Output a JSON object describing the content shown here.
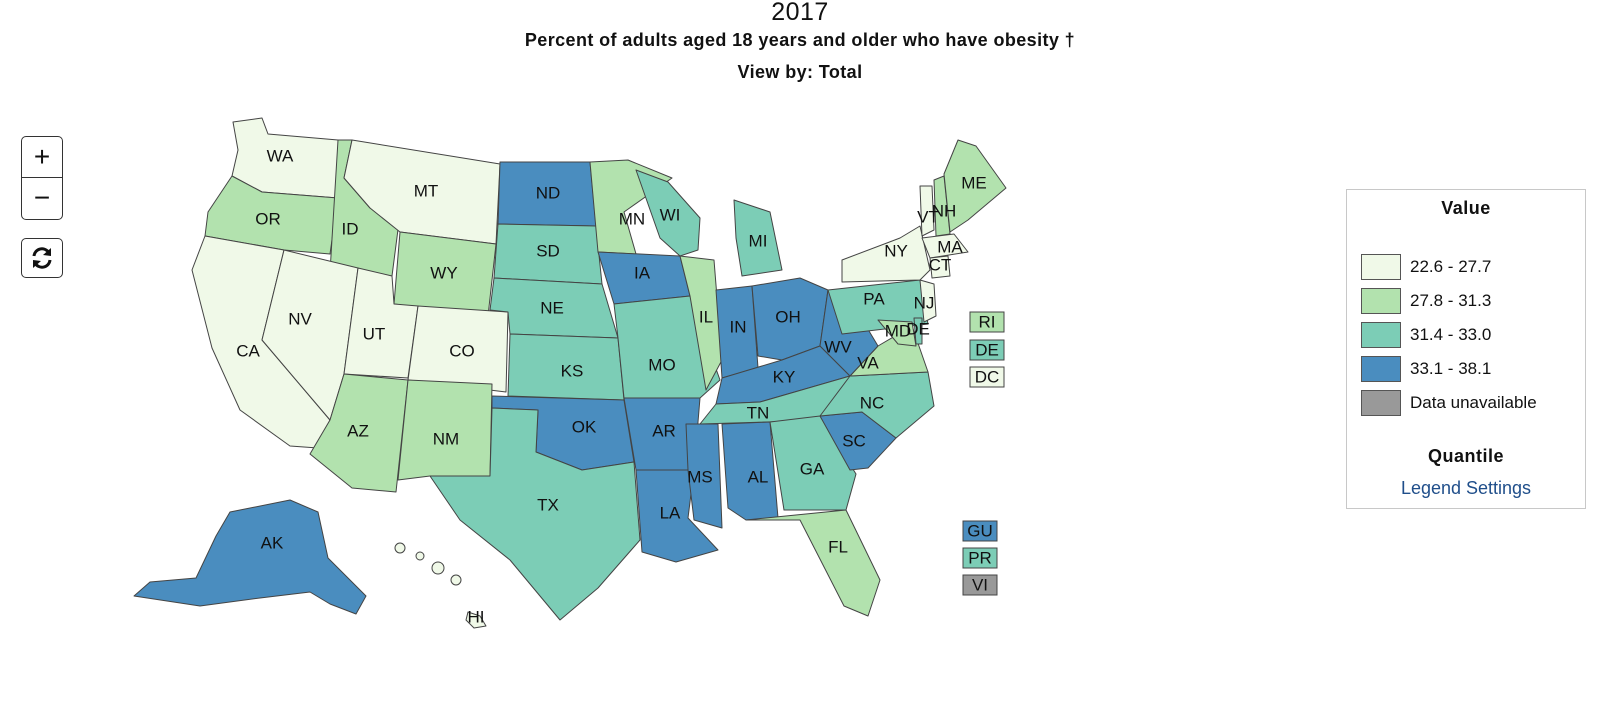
{
  "header": {
    "year": "2017",
    "subtitle": "Percent of adults aged 18 years and older who have obesity †",
    "view_by": "View by: Total"
  },
  "controls": {
    "zoom_in": "+",
    "zoom_out": "−",
    "reset_icon": "refresh-icon"
  },
  "legend": {
    "title": "Value",
    "classes": [
      {
        "label": "22.6 - 27.7",
        "color": "#f0f9e8"
      },
      {
        "label": "27.8 - 31.3",
        "color": "#b2e2ae"
      },
      {
        "label": "31.4 - 33.0",
        "color": "#7ccdb6"
      },
      {
        "label": "33.1 - 38.1",
        "color": "#4a8dbf"
      },
      {
        "label": "Data unavailable",
        "color": "#999999"
      }
    ],
    "method": "Quantile",
    "settings_link": "Legend Settings"
  },
  "map_data": {
    "states": [
      {
        "abbr": "WA",
        "cls": 0
      },
      {
        "abbr": "OR",
        "cls": 1
      },
      {
        "abbr": "CA",
        "cls": 0
      },
      {
        "abbr": "ID",
        "cls": 1
      },
      {
        "abbr": "NV",
        "cls": 0
      },
      {
        "abbr": "MT",
        "cls": 0
      },
      {
        "abbr": "WY",
        "cls": 1
      },
      {
        "abbr": "UT",
        "cls": 0
      },
      {
        "abbr": "CO",
        "cls": 0
      },
      {
        "abbr": "AZ",
        "cls": 1
      },
      {
        "abbr": "NM",
        "cls": 1
      },
      {
        "abbr": "ND",
        "cls": 3
      },
      {
        "abbr": "SD",
        "cls": 2
      },
      {
        "abbr": "NE",
        "cls": 2
      },
      {
        "abbr": "KS",
        "cls": 2
      },
      {
        "abbr": "OK",
        "cls": 3
      },
      {
        "abbr": "TX",
        "cls": 2
      },
      {
        "abbr": "MN",
        "cls": 1
      },
      {
        "abbr": "IA",
        "cls": 3
      },
      {
        "abbr": "MO",
        "cls": 2
      },
      {
        "abbr": "AR",
        "cls": 3
      },
      {
        "abbr": "LA",
        "cls": 3
      },
      {
        "abbr": "WI",
        "cls": 2
      },
      {
        "abbr": "IL",
        "cls": 1
      },
      {
        "abbr": "MI",
        "cls": 2
      },
      {
        "abbr": "IN",
        "cls": 3
      },
      {
        "abbr": "OH",
        "cls": 3
      },
      {
        "abbr": "KY",
        "cls": 3
      },
      {
        "abbr": "TN",
        "cls": 2
      },
      {
        "abbr": "MS",
        "cls": 3
      },
      {
        "abbr": "AL",
        "cls": 3
      },
      {
        "abbr": "GA",
        "cls": 2
      },
      {
        "abbr": "FL",
        "cls": 1
      },
      {
        "abbr": "SC",
        "cls": 3
      },
      {
        "abbr": "NC",
        "cls": 2
      },
      {
        "abbr": "VA",
        "cls": 1
      },
      {
        "abbr": "WV",
        "cls": 3
      },
      {
        "abbr": "PA",
        "cls": 2
      },
      {
        "abbr": "NY",
        "cls": 0
      },
      {
        "abbr": "VT",
        "cls": 0
      },
      {
        "abbr": "NH",
        "cls": 1
      },
      {
        "abbr": "ME",
        "cls": 1
      },
      {
        "abbr": "MA",
        "cls": 0
      },
      {
        "abbr": "CT",
        "cls": 0
      },
      {
        "abbr": "NJ",
        "cls": 0
      },
      {
        "abbr": "MD",
        "cls": 1
      },
      {
        "abbr": "DE",
        "cls": 2
      },
      {
        "abbr": "AK",
        "cls": 3
      },
      {
        "abbr": "HI",
        "cls": 0
      }
    ],
    "badges": [
      {
        "abbr": "RI",
        "cls": 1
      },
      {
        "abbr": "DE",
        "cls": 2
      },
      {
        "abbr": "DC",
        "cls": 0
      },
      {
        "abbr": "GU",
        "cls": 3
      },
      {
        "abbr": "PR",
        "cls": 2
      },
      {
        "abbr": "VI",
        "cls": 4
      }
    ]
  }
}
